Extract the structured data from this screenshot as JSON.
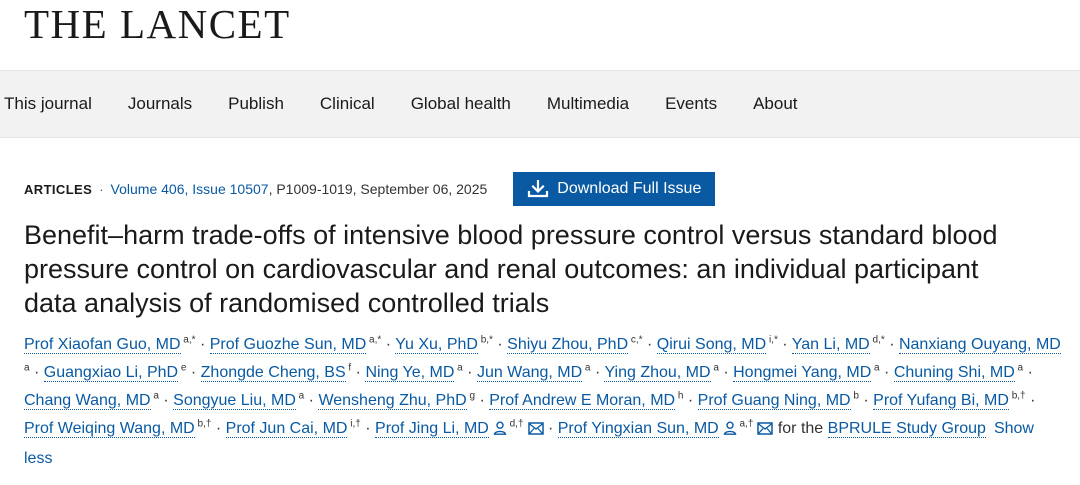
{
  "logo": "THE LANCET",
  "nav": [
    "This journal",
    "Journals",
    "Publish",
    "Clinical",
    "Global health",
    "Multimedia",
    "Events",
    "About"
  ],
  "meta": {
    "article_type": "ARTICLES",
    "separator": "·",
    "issue_link": "Volume 406, Issue 10507",
    "pages_date": ", P1009-1019, September 06, 2025"
  },
  "download_label": "Download Full Issue",
  "title": "Benefit–harm trade-offs of intensive blood pressure control versus standard blood pressure control on cardiovascular and renal outcomes: an individual participant data analysis of randomised controlled trials",
  "authors": [
    {
      "name": "Prof Xiaofan Guo, MD",
      "aff": "a,*"
    },
    {
      "name": "Prof Guozhe Sun, MD",
      "aff": "a,*"
    },
    {
      "name": "Yu Xu, PhD",
      "aff": "b,*"
    },
    {
      "name": "Shiyu Zhou, PhD",
      "aff": "c,*"
    },
    {
      "name": "Qirui Song, MD",
      "aff": "i,*"
    },
    {
      "name": "Yan Li, MD",
      "aff": "d,*"
    },
    {
      "name": "Nanxiang Ouyang, MD",
      "aff": "a"
    },
    {
      "name": "Guangxiao Li, PhD",
      "aff": "e"
    },
    {
      "name": "Zhongde Cheng, BS",
      "aff": "f"
    },
    {
      "name": "Ning Ye, MD",
      "aff": "a"
    },
    {
      "name": "Jun Wang, MD",
      "aff": "a"
    },
    {
      "name": "Ying Zhou, MD",
      "aff": "a"
    },
    {
      "name": "Hongmei Yang, MD",
      "aff": "a"
    },
    {
      "name": "Chuning Shi, MD",
      "aff": "a"
    },
    {
      "name": "Chang Wang, MD",
      "aff": "a"
    },
    {
      "name": "Songyue Liu, MD",
      "aff": "a"
    },
    {
      "name": "Wensheng Zhu, PhD",
      "aff": "g"
    },
    {
      "name": "Prof Andrew E Moran, MD",
      "aff": "h"
    },
    {
      "name": "Prof Guang Ning, MD",
      "aff": "b"
    },
    {
      "name": "Prof Yufang Bi, MD",
      "aff": "b,†"
    },
    {
      "name": "Prof Weiqing Wang, MD",
      "aff": "b,†"
    },
    {
      "name": "Prof Jun Cai, MD",
      "aff": "i,†"
    },
    {
      "name": "Prof Jing Li, MD",
      "aff": "d,†",
      "icons": true
    },
    {
      "name": "Prof Yingxian Sun, MD",
      "aff": "a,†",
      "icons": true
    }
  ],
  "group_prefix": "for the",
  "group_link": "BPRULE Study Group",
  "show_less": "Show less",
  "colors": {
    "link": "#0a5aa3",
    "button": "#0a5aa3",
    "nav_bg": "#f2f2f2"
  }
}
